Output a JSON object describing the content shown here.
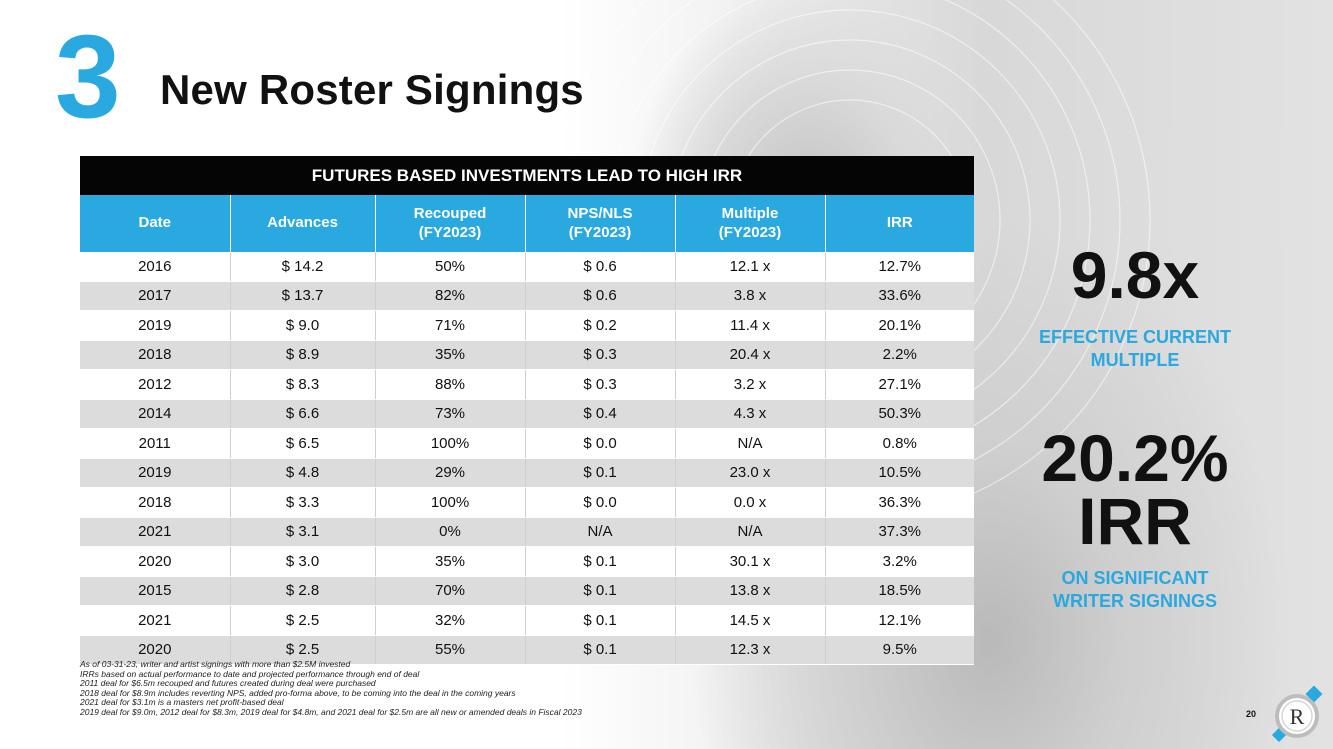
{
  "slide": {
    "section_number": "3",
    "title": "New Roster Signings",
    "page_number": "20"
  },
  "table": {
    "banner": "FUTURES BASED INVESTMENTS LEAD TO HIGH IRR",
    "headers": [
      [
        "Date"
      ],
      [
        "Advances"
      ],
      [
        "Recouped",
        "(FY2023)"
      ],
      [
        "NPS/NLS",
        "(FY2023)"
      ],
      [
        "Multiple",
        "(FY2023)"
      ],
      [
        "IRR"
      ]
    ],
    "rows": [
      [
        "2016",
        "$ 14.2",
        "50%",
        "$ 0.6",
        "12.1 x",
        "12.7%"
      ],
      [
        "2017",
        "$ 13.7",
        "82%",
        "$ 0.6",
        "3.8 x",
        "33.6%"
      ],
      [
        "2019",
        "$ 9.0",
        "71%",
        "$ 0.2",
        "11.4 x",
        "20.1%"
      ],
      [
        "2018",
        "$ 8.9",
        "35%",
        "$ 0.3",
        "20.4 x",
        "2.2%"
      ],
      [
        "2012",
        "$ 8.3",
        "88%",
        "$ 0.3",
        "3.2 x",
        "27.1%"
      ],
      [
        "2014",
        "$ 6.6",
        "73%",
        "$ 0.4",
        "4.3 x",
        "50.3%"
      ],
      [
        "2011",
        "$ 6.5",
        "100%",
        "$ 0.0",
        "N/A",
        "0.8%"
      ],
      [
        "2019",
        "$ 4.8",
        "29%",
        "$ 0.1",
        "23.0 x",
        "10.5%"
      ],
      [
        "2018",
        "$ 3.3",
        "100%",
        "$ 0.0",
        "0.0 x",
        "36.3%"
      ],
      [
        "2021",
        "$ 3.1",
        "0%",
        "N/A",
        "N/A",
        "37.3%"
      ],
      [
        "2020",
        "$ 3.0",
        "35%",
        "$ 0.1",
        "30.1 x",
        "3.2%"
      ],
      [
        "2015",
        "$ 2.8",
        "70%",
        "$ 0.1",
        "13.8 x",
        "18.5%"
      ],
      [
        "2021",
        "$ 2.5",
        "32%",
        "$ 0.1",
        "14.5 x",
        "12.1%"
      ],
      [
        "2020",
        "$ 2.5",
        "55%",
        "$ 0.1",
        "12.3 x",
        "9.5%"
      ]
    ]
  },
  "stats": {
    "multiple_value": "9.8x",
    "multiple_label_1": "EFFECTIVE CURRENT",
    "multiple_label_2": "MULTIPLE",
    "irr_value": "20.2%",
    "irr_word": "IRR",
    "irr_label_1": "ON SIGNIFICANT",
    "irr_label_2": "WRITER SIGNINGS"
  },
  "footnotes": [
    "As of 03-31-23, writer and artist signings with more than $2.5M invested",
    "IRRs based on actual performance to date and projected performance through end of deal",
    "2011 deal for $6.5m recouped and futures created during deal were purchased",
    "2018 deal for $8.9m includes reverting NPS, added pro-forma above, to be coming into the deal in the coming years",
    "2021 deal for $3.1m is a masters net profit-based deal",
    "2019 deal for $9.0m, 2012 deal for $8.3m, 2019 deal for $4.8m, and 2021 deal for $2.5m are all new or amended deals in Fiscal 2023"
  ],
  "logo": {
    "letter": "R",
    "accent_color": "#2aa8e0"
  },
  "colors": {
    "accent": "#2aa8e0",
    "banner": "#050505",
    "row_alt": "#dcdcdc"
  }
}
